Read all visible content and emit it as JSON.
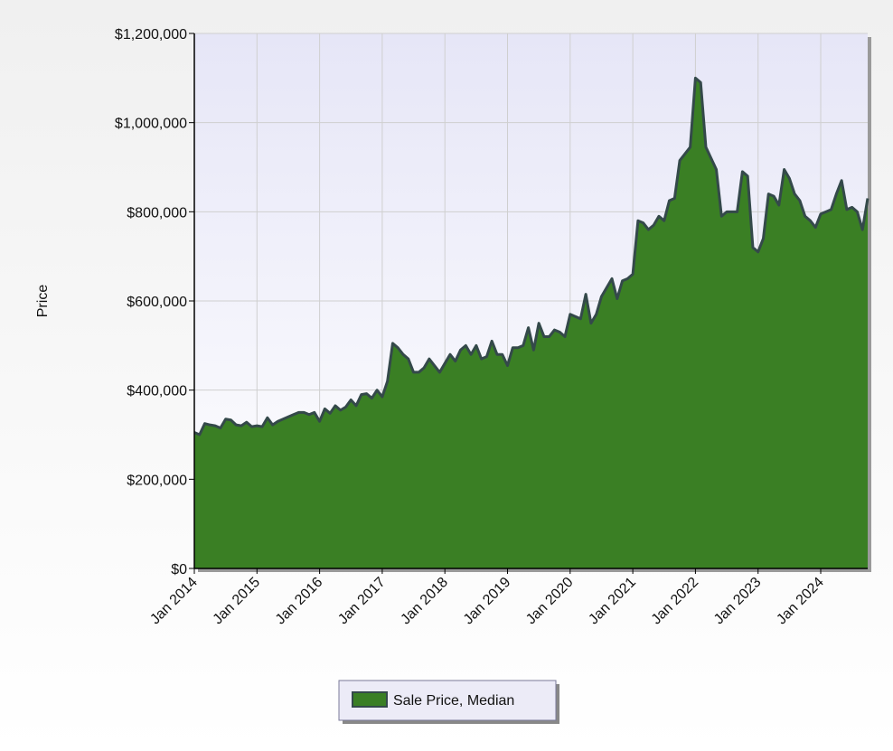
{
  "chart_data": {
    "type": "area",
    "y_label": "Price",
    "x": [
      "Jan 2014",
      "Feb 2014",
      "Mar 2014",
      "Apr 2014",
      "May 2014",
      "Jun 2014",
      "Jul 2014",
      "Aug 2014",
      "Sep 2014",
      "Oct 2014",
      "Nov 2014",
      "Dec 2014",
      "Jan 2015",
      "Feb 2015",
      "Mar 2015",
      "Apr 2015",
      "May 2015",
      "Jun 2015",
      "Jul 2015",
      "Aug 2015",
      "Sep 2015",
      "Oct 2015",
      "Nov 2015",
      "Dec 2015",
      "Jan 2016",
      "Feb 2016",
      "Mar 2016",
      "Apr 2016",
      "May 2016",
      "Jun 2016",
      "Jul 2016",
      "Aug 2016",
      "Sep 2016",
      "Oct 2016",
      "Nov 2016",
      "Dec 2016",
      "Jan 2017",
      "Feb 2017",
      "Mar 2017",
      "Apr 2017",
      "May 2017",
      "Jun 2017",
      "Jul 2017",
      "Aug 2017",
      "Sep 2017",
      "Oct 2017",
      "Nov 2017",
      "Dec 2017",
      "Jan 2018",
      "Feb 2018",
      "Mar 2018",
      "Apr 2018",
      "May 2018",
      "Jun 2018",
      "Jul 2018",
      "Aug 2018",
      "Sep 2018",
      "Oct 2018",
      "Nov 2018",
      "Dec 2018",
      "Jan 2019",
      "Feb 2019",
      "Mar 2019",
      "Apr 2019",
      "May 2019",
      "Jun 2019",
      "Jul 2019",
      "Aug 2019",
      "Sep 2019",
      "Oct 2019",
      "Nov 2019",
      "Dec 2019",
      "Jan 2020",
      "Feb 2020",
      "Mar 2020",
      "Apr 2020",
      "May 2020",
      "Jun 2020",
      "Jul 2020",
      "Aug 2020",
      "Sep 2020",
      "Oct 2020",
      "Nov 2020",
      "Dec 2020",
      "Jan 2021",
      "Feb 2021",
      "Mar 2021",
      "Apr 2021",
      "May 2021",
      "Jun 2021",
      "Jul 2021",
      "Aug 2021",
      "Sep 2021",
      "Oct 2021",
      "Nov 2021",
      "Dec 2021",
      "Jan 2022",
      "Feb 2022",
      "Mar 2022",
      "Apr 2022",
      "May 2022",
      "Jun 2022",
      "Jul 2022",
      "Aug 2022",
      "Sep 2022",
      "Oct 2022",
      "Nov 2022",
      "Dec 2022",
      "Jan 2023",
      "Feb 2023",
      "Mar 2023",
      "Apr 2023",
      "May 2023",
      "Jun 2023",
      "Jul 2023",
      "Aug 2023",
      "Sep 2023",
      "Oct 2023",
      "Nov 2023",
      "Dec 2023",
      "Jan 2024",
      "Feb 2024",
      "Mar 2024",
      "Apr 2024",
      "May 2024",
      "Jun 2024",
      "Jul 2024",
      "Aug 2024",
      "Sep 2024",
      "Oct 2024"
    ],
    "series": [
      {
        "name": "Sale Price, Median",
        "color": "#3a7f24",
        "values": [
          305000,
          300000,
          325000,
          322000,
          320000,
          315000,
          335000,
          333000,
          322000,
          320000,
          328000,
          318000,
          320000,
          318000,
          338000,
          322000,
          330000,
          335000,
          340000,
          345000,
          350000,
          350000,
          345000,
          350000,
          330000,
          358000,
          348000,
          365000,
          355000,
          362000,
          378000,
          365000,
          390000,
          392000,
          382000,
          400000,
          385000,
          420000,
          505000,
          495000,
          480000,
          470000,
          440000,
          440000,
          450000,
          470000,
          455000,
          440000,
          460000,
          480000,
          465000,
          490000,
          500000,
          480000,
          500000,
          470000,
          475000,
          510000,
          480000,
          480000,
          455000,
          495000,
          495000,
          500000,
          540000,
          490000,
          550000,
          520000,
          520000,
          535000,
          530000,
          520000,
          570000,
          565000,
          560000,
          615000,
          550000,
          570000,
          610000,
          630000,
          650000,
          605000,
          645000,
          650000,
          660000,
          780000,
          775000,
          760000,
          770000,
          790000,
          780000,
          825000,
          830000,
          915000,
          930000,
          945000,
          1100000,
          1090000,
          945000,
          920000,
          895000,
          790000,
          800000,
          800000,
          800000,
          890000,
          880000,
          720000,
          710000,
          740000,
          840000,
          835000,
          815000,
          895000,
          875000,
          840000,
          825000,
          790000,
          780000,
          765000,
          795000,
          800000,
          805000,
          840000,
          870000,
          805000,
          810000,
          800000,
          760000,
          830000
        ]
      }
    ],
    "xticks": [
      "Jan 2014",
      "Jan 2015",
      "Jan 2016",
      "Jan 2017",
      "Jan 2018",
      "Jan 2019",
      "Jan 2020",
      "Jan 2021",
      "Jan 2022",
      "Jan 2023",
      "Jan 2024"
    ],
    "ylim": [
      0,
      1200000
    ],
    "yticks": [
      {
        "value": 0,
        "label": "$0"
      },
      {
        "value": 200000,
        "label": "$200,000"
      },
      {
        "value": 400000,
        "label": "$400,000"
      },
      {
        "value": 600000,
        "label": "$600,000"
      },
      {
        "value": 800000,
        "label": "$800,000"
      },
      {
        "value": 1000000,
        "label": "$1,000,000"
      },
      {
        "value": 1200000,
        "label": "$1,200,000"
      }
    ],
    "grid": true,
    "legend": "bottom"
  }
}
